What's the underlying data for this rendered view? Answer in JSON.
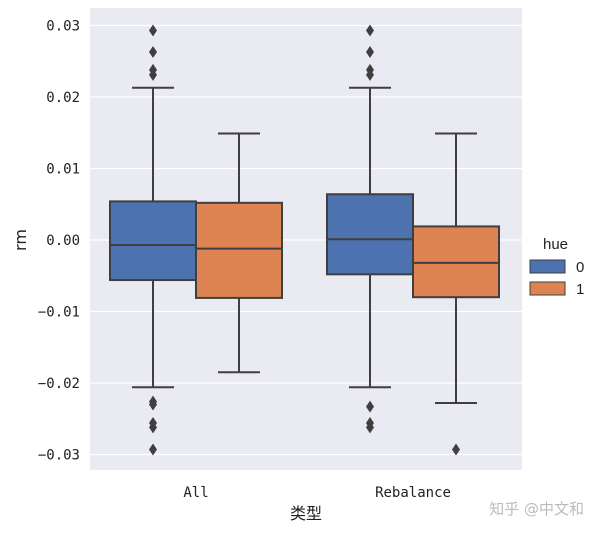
{
  "chart_data": {
    "type": "boxplot",
    "title": "",
    "xlabel": "类型",
    "ylabel": "rm",
    "categories": [
      "All",
      "Rebalance"
    ],
    "y_ticks": [
      "0.03",
      "0.02",
      "0.01",
      "0.00",
      "−0.01",
      "−0.02",
      "−0.03"
    ],
    "y_tick_values": [
      0.03,
      0.02,
      0.01,
      0.0,
      -0.01,
      -0.02,
      -0.03
    ],
    "ylim": [
      -0.0322,
      0.0322
    ],
    "grid": true,
    "legend": {
      "title": "hue",
      "placement": "right",
      "entries": [
        "0",
        "1"
      ]
    },
    "series": [
      {
        "name": "0",
        "color": "#4c72b0",
        "boxes": [
          {
            "category": "All",
            "whisker_low": -0.0206,
            "q1": -0.0056,
            "median": -0.0007,
            "q3": 0.0054,
            "whisker_high": 0.0213,
            "outliers": [
              0.0293,
              0.0263,
              0.0238,
              0.0231,
              -0.0226,
              -0.023,
              -0.0256,
              -0.0262,
              -0.0293
            ]
          },
          {
            "category": "Rebalance",
            "whisker_low": -0.0206,
            "q1": -0.0048,
            "median": 0.0001,
            "q3": 0.0064,
            "whisker_high": 0.0213,
            "outliers": [
              0.0293,
              0.0263,
              0.0238,
              0.0231,
              -0.0233,
              -0.0256,
              -0.0262
            ]
          }
        ]
      },
      {
        "name": "1",
        "color": "#dd8452",
        "boxes": [
          {
            "category": "All",
            "whisker_low": -0.0185,
            "q1": -0.0081,
            "median": -0.0012,
            "q3": 0.0052,
            "whisker_high": 0.0149,
            "outliers": []
          },
          {
            "category": "Rebalance",
            "whisker_low": -0.0228,
            "q1": -0.008,
            "median": -0.0032,
            "q3": 0.0019,
            "whisker_high": 0.0149,
            "outliers": [
              -0.0293
            ]
          }
        ]
      }
    ],
    "background": "#eaeaf2",
    "line_color": "#3f3f3f"
  },
  "watermark": "知乎 @中文和"
}
